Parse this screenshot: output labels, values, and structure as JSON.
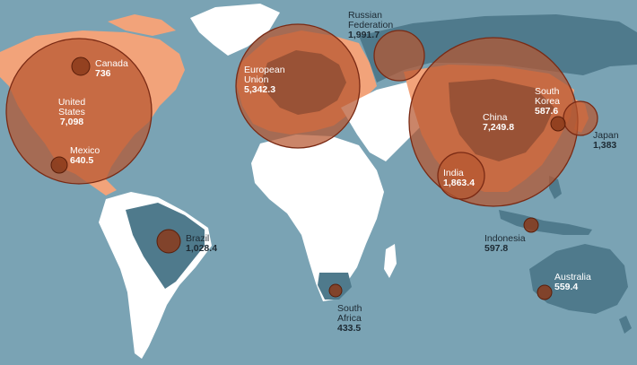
{
  "colors": {
    "ocean": "#7aa3b4",
    "land_highlight": "#f2a37a",
    "land_other": "#ffffff",
    "land_shaded": "#4f7a8c",
    "bubble_fill": "#b6562f",
    "bubble_stroke": "#7a2a14",
    "dot_fill": "#8a3a1a"
  },
  "countries": [
    {
      "id": "canada",
      "name": "Canada",
      "value": "736"
    },
    {
      "id": "us",
      "name": "United States",
      "value": "7,098"
    },
    {
      "id": "mexico",
      "name": "Mexico",
      "value": "640.5"
    },
    {
      "id": "brazil",
      "name": "Brazil",
      "value": "1,028.4"
    },
    {
      "id": "eu",
      "name": "European Union",
      "value": "5,342.3"
    },
    {
      "id": "russia",
      "name": "Russian Federation",
      "value": "1,991.7"
    },
    {
      "id": "china",
      "name": "China",
      "value": "7,249.8"
    },
    {
      "id": "india",
      "name": "India",
      "value": "1,863.4"
    },
    {
      "id": "skorea",
      "name": "South Korea",
      "value": "587.6"
    },
    {
      "id": "japan",
      "name": "Japan",
      "value": "1,383"
    },
    {
      "id": "indonesia",
      "name": "Indonesia",
      "value": "597.8"
    },
    {
      "id": "australia",
      "name": "Australia",
      "value": "559.4"
    },
    {
      "id": "safrica",
      "name": "South Africa",
      "value": "433.5"
    }
  ]
}
